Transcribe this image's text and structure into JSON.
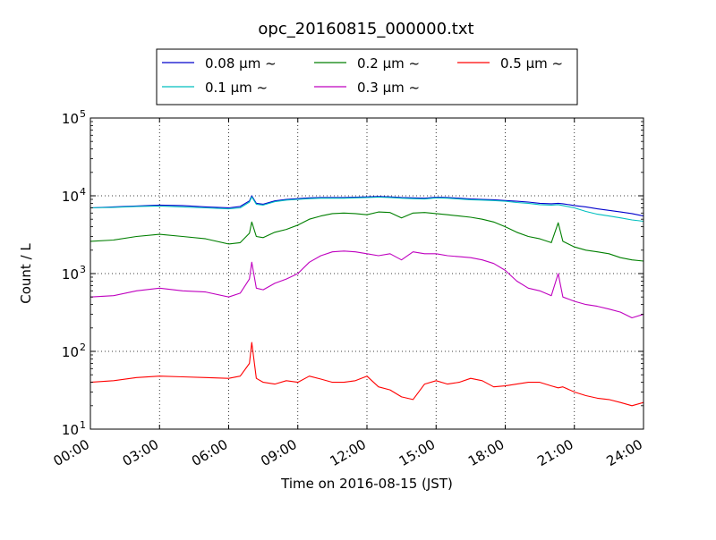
{
  "chart_data": {
    "type": "line",
    "title": "opc_20160815_000000.txt",
    "xlabel": "Time on 2016-08-15 (JST)",
    "ylabel": "Count / L",
    "yscale": "log",
    "ylim": [
      10,
      100000
    ],
    "xlim": [
      0,
      24
    ],
    "grid": true,
    "legend": {
      "placement": "top-center",
      "columns": 3
    },
    "x_ticks": [
      {
        "value": 0,
        "label": "00:00"
      },
      {
        "value": 3,
        "label": "03:00"
      },
      {
        "value": 6,
        "label": "06:00"
      },
      {
        "value": 9,
        "label": "09:00"
      },
      {
        "value": 12,
        "label": "12:00"
      },
      {
        "value": 15,
        "label": "15:00"
      },
      {
        "value": 18,
        "label": "18:00"
      },
      {
        "value": 21,
        "label": "21:00"
      },
      {
        "value": 24,
        "label": "24:00"
      }
    ],
    "y_ticks": [
      {
        "value": 10,
        "base": "10",
        "exp": "1"
      },
      {
        "value": 100,
        "base": "10",
        "exp": "2"
      },
      {
        "value": 1000,
        "base": "10",
        "exp": "3"
      },
      {
        "value": 10000,
        "base": "10",
        "exp": "4"
      },
      {
        "value": 100000,
        "base": "10",
        "exp": "5"
      }
    ],
    "x_hours": [
      0,
      1,
      2,
      3,
      4,
      5,
      6,
      6.5,
      6.9,
      7.0,
      7.2,
      7.5,
      8,
      8.5,
      9,
      9.5,
      10,
      10.5,
      11,
      11.5,
      12,
      12.5,
      13,
      13.5,
      14,
      14.5,
      15,
      15.5,
      16,
      16.5,
      17,
      17.5,
      18,
      18.5,
      19,
      19.5,
      20,
      20.3,
      20.5,
      21,
      21.5,
      22,
      22.5,
      23,
      23.5,
      24
    ],
    "series": [
      {
        "name": "0.08 μm ~",
        "color": "#0000cc",
        "values": [
          7000,
          7200,
          7400,
          7600,
          7500,
          7200,
          7000,
          7300,
          8600,
          10000,
          8000,
          7800,
          8600,
          9000,
          9200,
          9400,
          9500,
          9500,
          9500,
          9600,
          9700,
          9800,
          9700,
          9500,
          9400,
          9300,
          9600,
          9500,
          9300,
          9100,
          9000,
          8900,
          8700,
          8500,
          8300,
          8000,
          7900,
          8000,
          7900,
          7500,
          7200,
          6800,
          6500,
          6200,
          5900,
          5500
        ]
      },
      {
        "name": "0.1 μm ~",
        "color": "#00bfbf",
        "values": [
          7000,
          7100,
          7300,
          7400,
          7200,
          7000,
          6800,
          7000,
          8300,
          9700,
          7800,
          7600,
          8400,
          8800,
          9000,
          9200,
          9300,
          9300,
          9300,
          9400,
          9500,
          9600,
          9500,
          9300,
          9200,
          9100,
          9400,
          9300,
          9100,
          8900,
          8800,
          8700,
          8500,
          8200,
          8000,
          7700,
          7600,
          7700,
          7500,
          7000,
          6300,
          5800,
          5500,
          5200,
          4900,
          4700
        ]
      },
      {
        "name": "0.2 μm ~",
        "color": "#007f00",
        "values": [
          2600,
          2700,
          3000,
          3200,
          3000,
          2800,
          2400,
          2500,
          3300,
          4600,
          3000,
          2900,
          3400,
          3700,
          4200,
          5000,
          5500,
          5900,
          6000,
          5900,
          5700,
          6200,
          6100,
          5200,
          6000,
          6100,
          5900,
          5700,
          5500,
          5300,
          5000,
          4600,
          4000,
          3400,
          3000,
          2800,
          2500,
          4500,
          2600,
          2200,
          2000,
          1900,
          1800,
          1600,
          1500,
          1450
        ]
      },
      {
        "name": "0.3 μm ~",
        "color": "#bf00bf",
        "values": [
          500,
          520,
          600,
          650,
          600,
          580,
          500,
          560,
          850,
          1400,
          650,
          620,
          750,
          850,
          1000,
          1400,
          1700,
          1900,
          1950,
          1900,
          1800,
          1700,
          1800,
          1500,
          1900,
          1800,
          1800,
          1700,
          1650,
          1600,
          1500,
          1350,
          1100,
          800,
          650,
          600,
          520,
          1000,
          500,
          440,
          400,
          380,
          350,
          320,
          270,
          300
        ]
      },
      {
        "name": "0.5 μm ~",
        "color": "#ff0000",
        "values": [
          40,
          42,
          46,
          48,
          47,
          46,
          45,
          48,
          70,
          130,
          45,
          40,
          38,
          42,
          40,
          48,
          44,
          40,
          40,
          42,
          48,
          35,
          32,
          26,
          24,
          38,
          42,
          38,
          40,
          45,
          42,
          35,
          36,
          38,
          40,
          40,
          36,
          34,
          35,
          30,
          27,
          25,
          24,
          22,
          20,
          22
        ]
      }
    ]
  }
}
